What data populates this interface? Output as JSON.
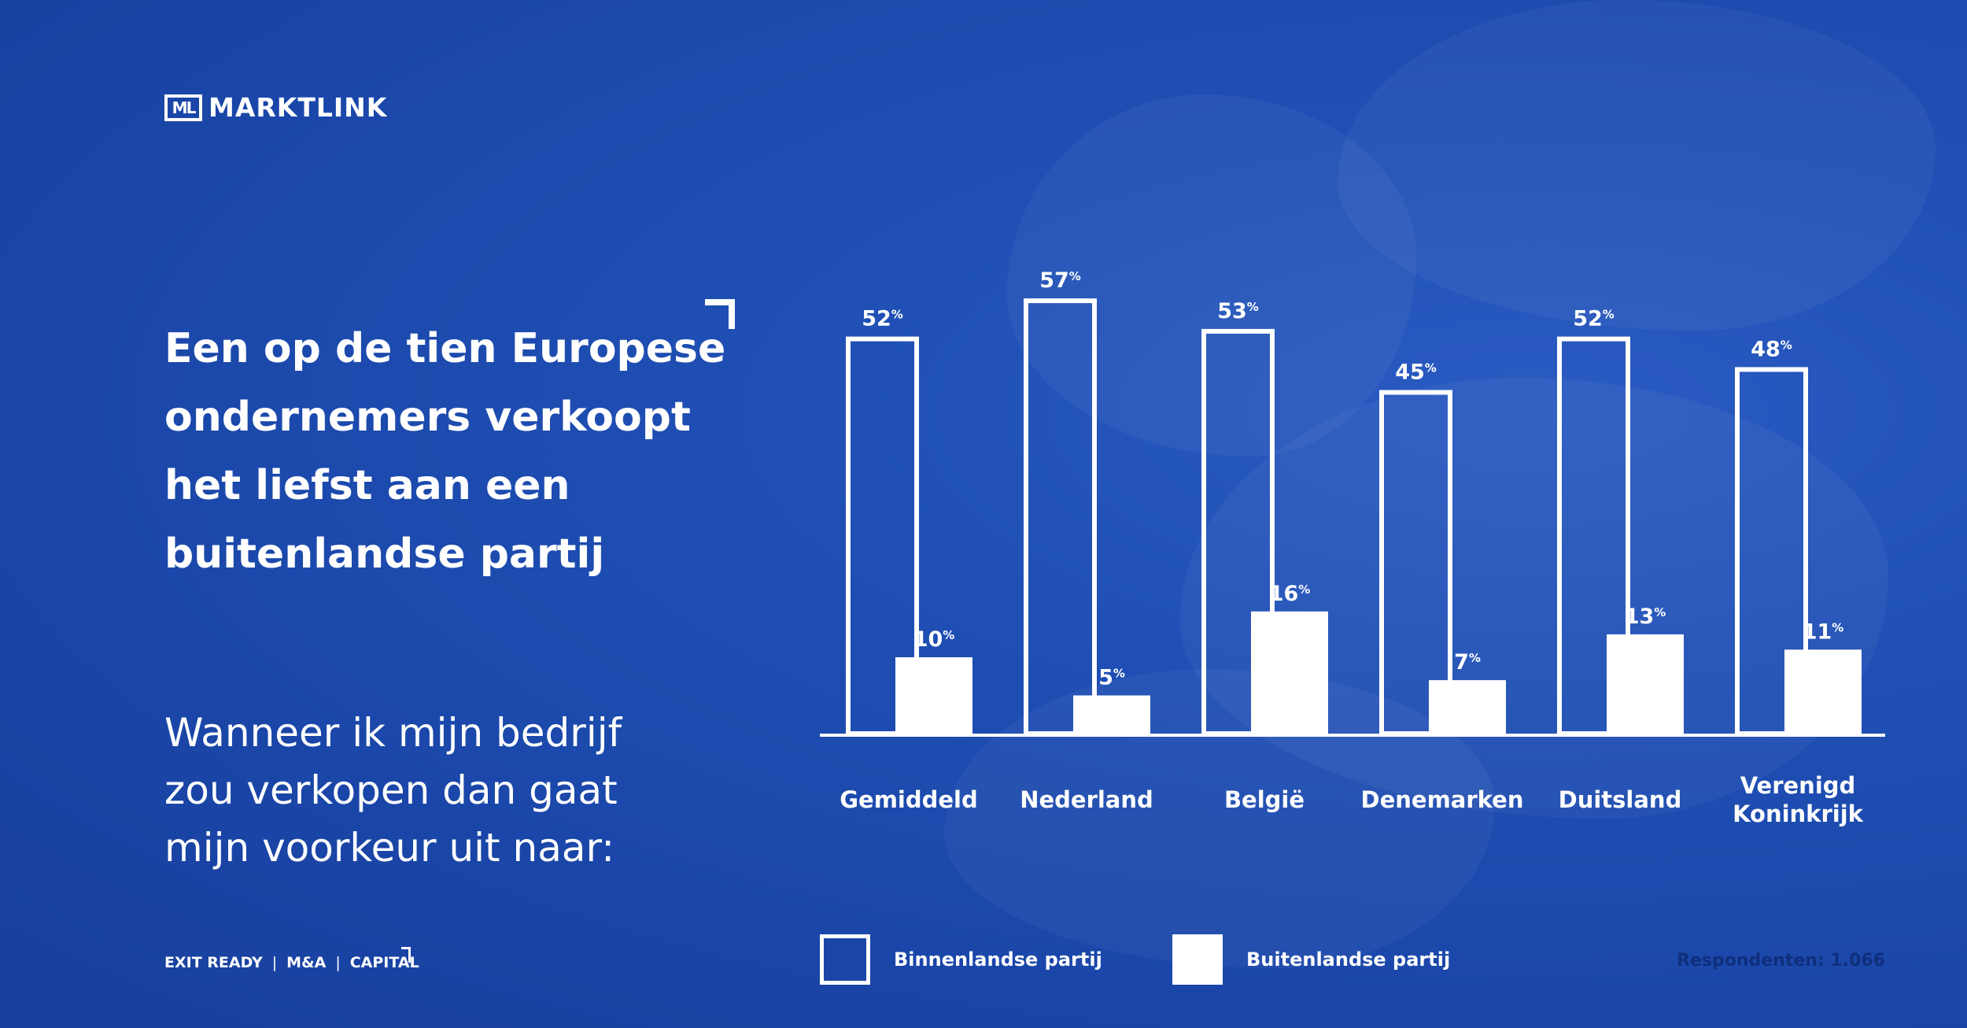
{
  "brand": {
    "logo_mark": "ML",
    "name": "MARKTLINK"
  },
  "headline": [
    "Een op de tien Europese",
    "ondernemers verkoopt",
    "het liefst aan een",
    "buitenlandse partij"
  ],
  "subhead": [
    "Wanneer ik mijn bedrijf",
    "zou verkopen dan gaat",
    "mijn voorkeur uit naar:"
  ],
  "footer": {
    "items": [
      "EXIT READY",
      "M&A",
      "CAPITAL"
    ],
    "separator": "|"
  },
  "legend": {
    "domestic": "Binnenlandse partij",
    "foreign": "Buitenlandse partij"
  },
  "respondents": "Respondenten: 1.066",
  "colors": {
    "background": "#1f4fb4",
    "bars": "#ffffff",
    "respondents_text": "#102f7c"
  },
  "chart_data": {
    "type": "bar",
    "categories": [
      [
        "Gemiddeld"
      ],
      [
        "Nederland"
      ],
      [
        "België"
      ],
      [
        "Denemarken"
      ],
      [
        "Duitsland"
      ],
      [
        "Verenigd",
        "Koninkrijk"
      ]
    ],
    "series": [
      {
        "name": "Binnenlandse partij",
        "style": "outline",
        "values": [
          52,
          57,
          53,
          45,
          52,
          48
        ]
      },
      {
        "name": "Buitenlandse partij",
        "style": "filled",
        "values": [
          10,
          5,
          16,
          7,
          13,
          11
        ]
      }
    ],
    "value_suffix": "%",
    "ylim": [
      0,
      60
    ],
    "grid": false,
    "legend_position": "bottom"
  }
}
